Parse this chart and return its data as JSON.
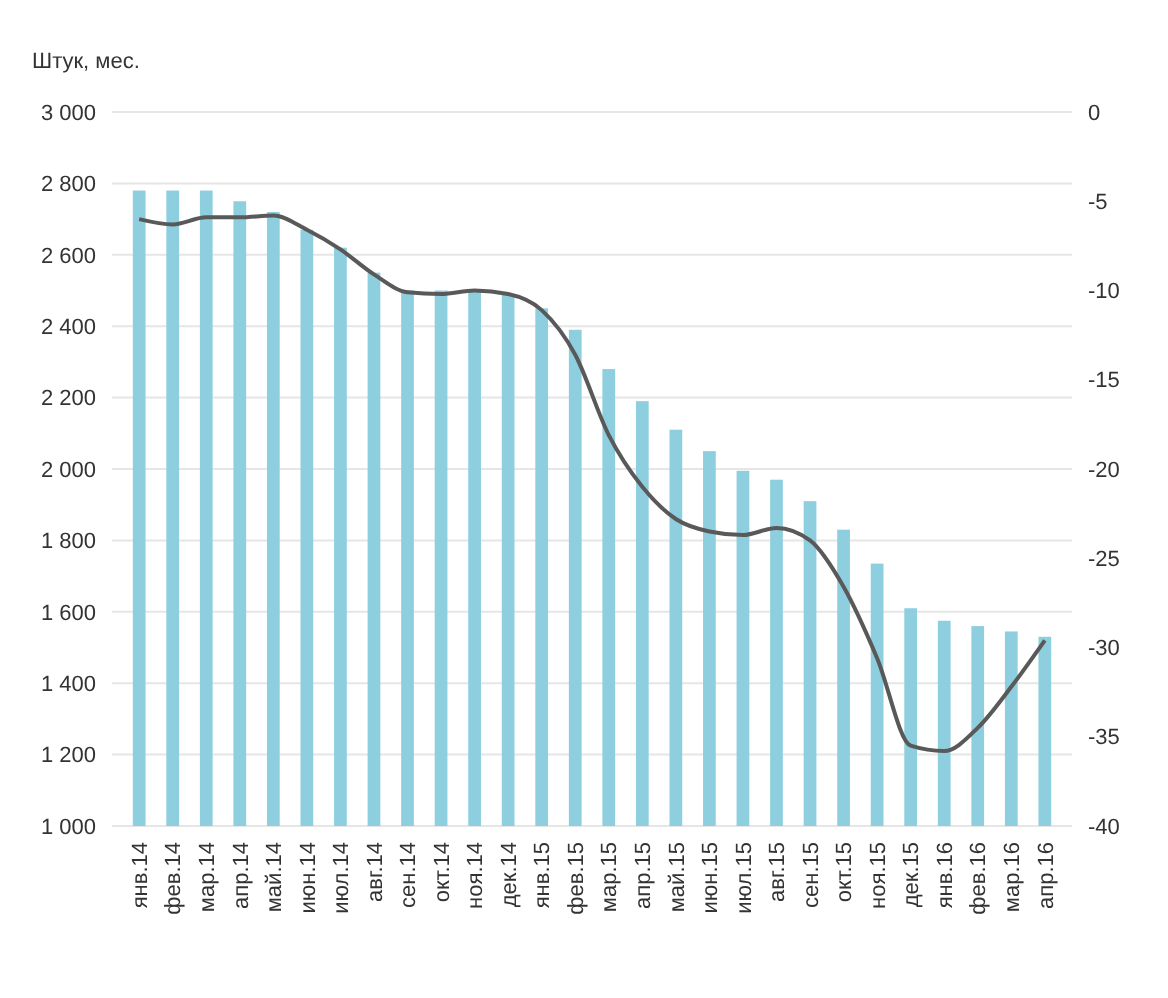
{
  "chart_data": {
    "type": "bar",
    "ylabel": "Штук, мес.",
    "categories": [
      "янв.14",
      "фев.14",
      "мар.14",
      "апр.14",
      "май.14",
      "июн.14",
      "июл.14",
      "авг.14",
      "сен.14",
      "окт.14",
      "ноя.14",
      "дек.14",
      "янв.15",
      "фев.15",
      "мар.15",
      "апр.15",
      "май.15",
      "июн.15",
      "июл.15",
      "авг.15",
      "сен.15",
      "окт.15",
      "ноя.15",
      "дек.15",
      "янв.16",
      "фев.16",
      "мар.16",
      "апр.16"
    ],
    "series": [
      {
        "color": "#8ecfdf",
        "values": [
          2780,
          2780,
          2780,
          2750,
          2720,
          2670,
          2620,
          2550,
          2500,
          2500,
          2500,
          2490,
          2450,
          2390,
          2280,
          2190,
          2110,
          2050,
          1995,
          1970,
          1910,
          1830,
          1735,
          1610,
          1575,
          1560,
          1545,
          1530
        ]
      },
      {
        "type": "line",
        "axis": "y2",
        "color": "#595959",
        "marker": "none",
        "line_style": "solid",
        "values": [
          -6.0,
          -6.3,
          -5.9,
          -5.9,
          -5.8,
          -6.6,
          -7.7,
          -9.1,
          -10.1,
          -10.2,
          -10.0,
          -10.2,
          -11.1,
          -13.6,
          -18.1,
          -21.0,
          -22.8,
          -23.5,
          -23.7,
          -23.3,
          -24.0,
          -26.6,
          -30.6,
          -35.5,
          -35.8,
          -34.5,
          -32.2,
          -29.6
        ]
      }
    ],
    "ylim": [
      1000,
      3000
    ],
    "yticks": [
      {
        "value": 1000,
        "label": "1 000"
      },
      {
        "value": 1200,
        "label": "1 200"
      },
      {
        "value": 1400,
        "label": "1 400"
      },
      {
        "value": 1600,
        "label": "1 600"
      },
      {
        "value": 1800,
        "label": "1 800"
      },
      {
        "value": 2000,
        "label": "2 000"
      },
      {
        "value": 2200,
        "label": "2 200"
      },
      {
        "value": 2400,
        "label": "2 400"
      },
      {
        "value": 2600,
        "label": "2 600"
      },
      {
        "value": 2800,
        "label": "2 800"
      },
      {
        "value": 3000,
        "label": "3 000"
      }
    ],
    "y2lim": [
      -40,
      0
    ],
    "y2ticks": [
      -40,
      -35,
      -30,
      -25,
      -20,
      -15,
      -10,
      -5,
      0
    ],
    "grid": "y"
  }
}
